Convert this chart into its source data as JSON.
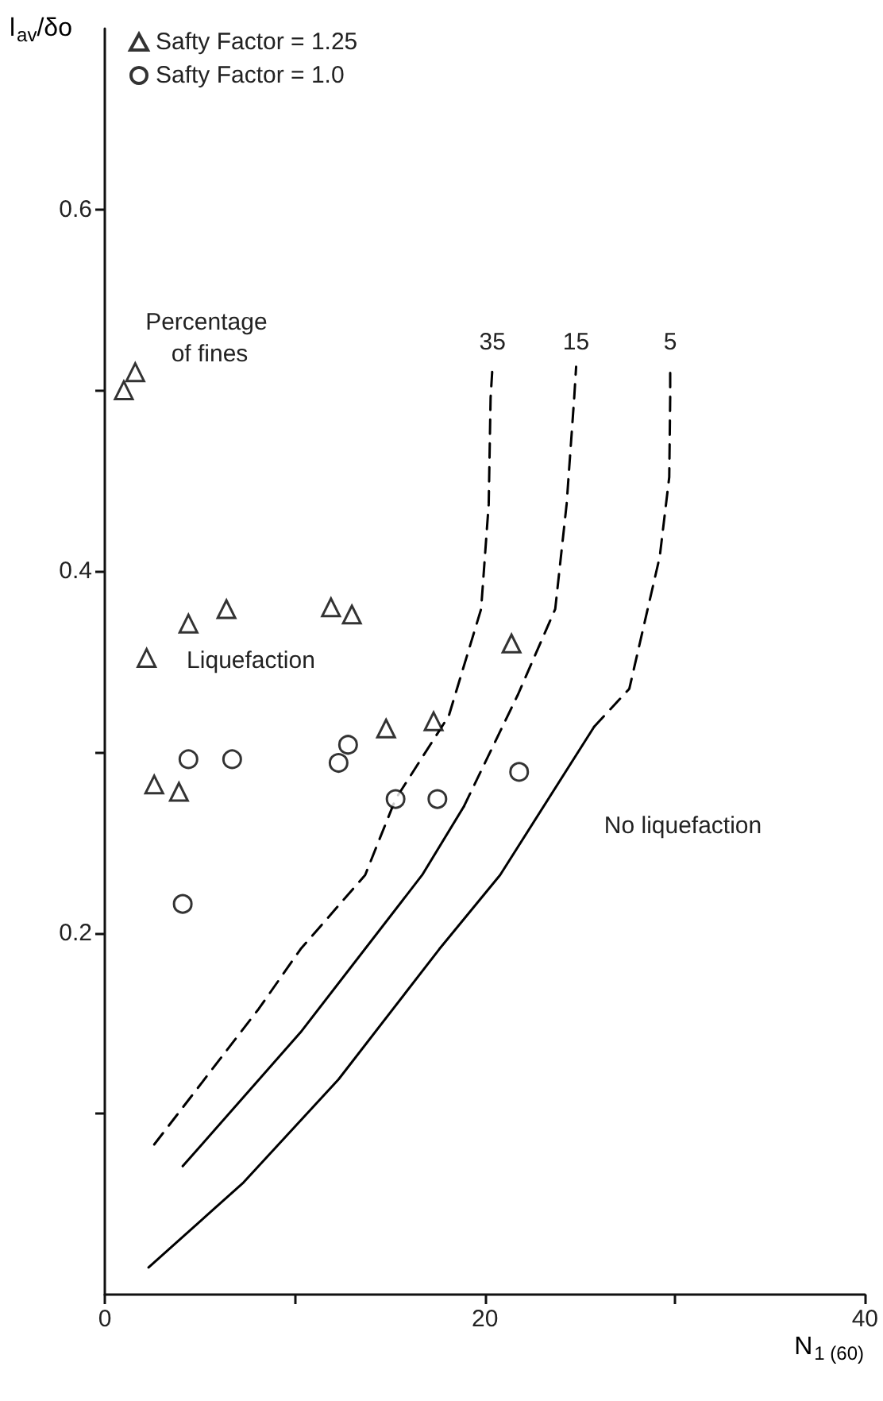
{
  "chart_data": {
    "type": "scatter",
    "xlabel": "N$_{1 (60)}$",
    "ylabel": "l$_{av}$/δo",
    "xlim": [
      0,
      40
    ],
    "ylim": [
      0,
      0.7
    ],
    "xticks": [
      0,
      {
        "value": 10,
        "label": null
      },
      20,
      {
        "value": 30,
        "label": null
      },
      40
    ],
    "yticks": [
      {
        "value": 0.1,
        "label": null
      },
      0.2,
      {
        "value": 0.3,
        "label": null
      },
      0.4,
      {
        "value": 0.5,
        "label": null
      },
      0.6
    ],
    "grid": false,
    "legend": "top left",
    "annotations": [
      "Percentage of fines",
      "Liquefaction",
      "No liquefaction"
    ],
    "series": [
      {
        "name": "Safty Factor = 1.25",
        "color": "#000000",
        "marker": "triangle",
        "x": [
          1.0,
          1.6,
          4.4,
          6.4,
          11.9,
          13.0,
          2.2,
          21.4,
          14.8,
          17.3,
          2.6,
          3.9
        ],
        "values": [
          0.5,
          0.51,
          0.371,
          0.379,
          0.38,
          0.376,
          0.352,
          0.36,
          0.313,
          0.317,
          0.282,
          0.278
        ]
      },
      {
        "name": "Safty Factor = 1.0",
        "color": "#000000",
        "marker": "circle",
        "x": [
          4.4,
          6.7,
          12.8,
          12.3,
          15.3,
          17.5,
          21.8,
          4.1
        ],
        "values": [
          0.296,
          0.296,
          0.304,
          0.294,
          0.274,
          0.274,
          0.289,
          0.216
        ]
      },
      {
        "type": "line",
        "name": "35",
        "color": "#000000",
        "line_style": "dashed",
        "marker": "none",
        "x": [
          2.6,
          8.1,
          10.3,
          13.7,
          15.3,
          18.1,
          19.8,
          20.2,
          20.3,
          20.4
        ],
        "values": [
          0.083,
          0.158,
          0.191,
          0.232,
          0.274,
          0.32,
          0.379,
          0.437,
          0.496,
          0.513
        ]
      },
      {
        "type": "line",
        "color": "#000000",
        "line_style": "solid",
        "marker": "none",
        "x": [
          4.1,
          10.3,
          16.7,
          18.9
        ],
        "values": [
          0.071,
          0.145,
          0.232,
          0.27
        ]
      },
      {
        "type": "line",
        "name": "15",
        "color": "#000000",
        "line_style": "dashed",
        "marker": "none",
        "x": [
          18.9,
          21.75,
          23.7,
          24.3,
          24.7,
          24.8
        ],
        "values": [
          0.27,
          0.332,
          0.379,
          0.437,
          0.496,
          0.513
        ]
      },
      {
        "type": "line",
        "color": "#000000",
        "line_style": "solid",
        "marker": "none",
        "x": [
          2.3,
          7.3,
          12.3,
          17.6,
          20.8,
          25.75
        ],
        "values": [
          0.015,
          0.062,
          0.119,
          0.191,
          0.232,
          0.314
        ]
      },
      {
        "type": "line",
        "name": "5",
        "color": "#000000",
        "line_style": "dashed",
        "marker": "none",
        "x": [
          25.75,
          27.6,
          29.2,
          29.7,
          29.75,
          29.75
        ],
        "values": [
          0.314,
          0.335,
          0.408,
          0.452,
          0.496,
          0.513
        ]
      }
    ]
  }
}
